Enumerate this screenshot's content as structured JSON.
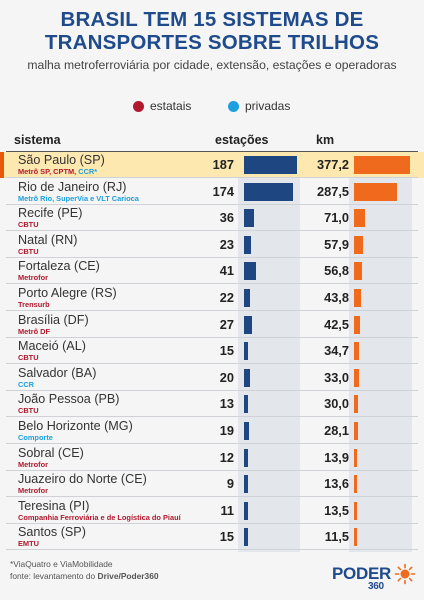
{
  "title_lines": [
    "BRASIL TEM 15 SISTEMAS DE",
    "TRANSPORTES SOBRE TRILHOS"
  ],
  "subtitle": "malha metroferroviária por cidade, extensão, estações e operadoras",
  "legend": [
    {
      "label": "estatais",
      "color": "#b0192e"
    },
    {
      "label": "privadas",
      "color": "#1ca0e0"
    }
  ],
  "headers": {
    "sistema": "sistema",
    "estacoes": "estações",
    "km": "km"
  },
  "colors": {
    "estatal": "#b0192e",
    "privada": "#1ca0e0",
    "bar_estacoes": "#1e4680",
    "bar_km": "#f06a1e",
    "title": "#1f4a8c",
    "highlight": "#fde8b0"
  },
  "chart_data": {
    "type": "table",
    "max_estacoes": 187,
    "max_km": 377.2,
    "rows": [
      {
        "city": "São Paulo (SP)",
        "operator": "Metrô SP, CPTM, ",
        "operator2": "CCR*",
        "type": "estatal",
        "type2": "privada",
        "estacoes": 187,
        "km": 377.2,
        "km_label": "377,2",
        "highlight": true
      },
      {
        "city": "Rio de Janeiro (RJ)",
        "operator": "Metrô Rio, SuperVia e VLT Carioca",
        "type": "privada",
        "estacoes": 174,
        "km": 287.5,
        "km_label": "287,5"
      },
      {
        "city": "Recife (PE)",
        "operator": "CBTU",
        "type": "estatal",
        "estacoes": 36,
        "km": 71.0,
        "km_label": "71,0"
      },
      {
        "city": "Natal (RN)",
        "operator": "CBTU",
        "type": "estatal",
        "estacoes": 23,
        "km": 57.9,
        "km_label": "57,9"
      },
      {
        "city": "Fortaleza (CE)",
        "operator": "Metrofor",
        "type": "estatal",
        "estacoes": 41,
        "km": 56.8,
        "km_label": "56,8"
      },
      {
        "city": "Porto Alegre (RS)",
        "operator": "Trensurb",
        "type": "estatal",
        "estacoes": 22,
        "km": 43.8,
        "km_label": "43,8"
      },
      {
        "city": "Brasília (DF)",
        "operator": "Metrô DF",
        "type": "estatal",
        "estacoes": 27,
        "km": 42.5,
        "km_label": "42,5"
      },
      {
        "city": "Maceió (AL)",
        "operator": "CBTU",
        "type": "estatal",
        "estacoes": 15,
        "km": 34.7,
        "km_label": "34,7"
      },
      {
        "city": "Salvador (BA)",
        "operator": "CCR",
        "type": "privada",
        "estacoes": 20,
        "km": 33.0,
        "km_label": "33,0"
      },
      {
        "city": "João Pessoa (PB)",
        "operator": "CBTU",
        "type": "estatal",
        "estacoes": 13,
        "km": 30.0,
        "km_label": "30,0"
      },
      {
        "city": "Belo Horizonte (MG)",
        "operator": "Comporte",
        "type": "privada",
        "estacoes": 19,
        "km": 28.1,
        "km_label": "28,1"
      },
      {
        "city": "Sobral (CE)",
        "operator": "Metrofor",
        "type": "estatal",
        "estacoes": 12,
        "km": 13.9,
        "km_label": "13,9"
      },
      {
        "city": "Juazeiro do Norte (CE)",
        "operator": "Metrofor",
        "type": "estatal",
        "estacoes": 9,
        "km": 13.6,
        "km_label": "13,6"
      },
      {
        "city": "Teresina (PI)",
        "operator": "Companhia Ferroviária e de Logística do Piauí",
        "type": "estatal",
        "estacoes": 11,
        "km": 13.5,
        "km_label": "13,5"
      },
      {
        "city": "Santos (SP)",
        "operator": "EMTU",
        "type": "estatal",
        "estacoes": 15,
        "km": 11.5,
        "km_label": "11,5"
      }
    ]
  },
  "footnote": {
    "line1": "*ViaQuatro e ViaMobilidade",
    "line2_prefix": "fonte: levantamento do ",
    "line2_bold": "Drive/Poder360"
  },
  "logo": {
    "text": "PODER",
    "number": "360"
  }
}
